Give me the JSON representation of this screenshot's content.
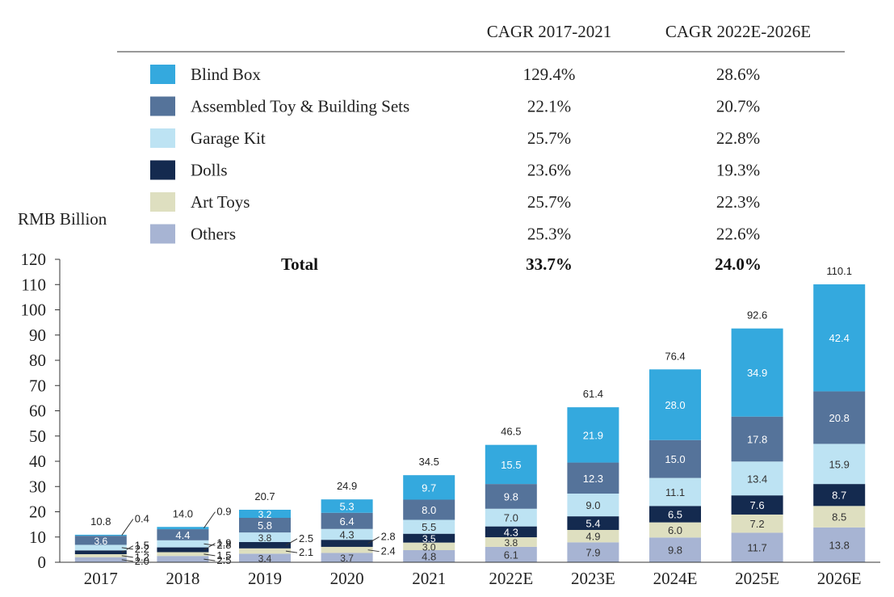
{
  "chart_data": {
    "type": "bar",
    "stacked": true,
    "unit_label": "RMB Billion",
    "ylim": [
      0,
      120
    ],
    "yticks": [
      0,
      10,
      20,
      30,
      40,
      50,
      60,
      70,
      80,
      90,
      100,
      110,
      120
    ],
    "categories": [
      "2017",
      "2018",
      "2019",
      "2020",
      "2021",
      "2022E",
      "2023E",
      "2024E",
      "2025E",
      "2026E"
    ],
    "totals": [
      "10.8",
      "14.0",
      "20.7",
      "24.9",
      "34.5",
      "46.5",
      "61.4",
      "76.4",
      "92.6",
      "110.1"
    ],
    "series": [
      {
        "name": "Others",
        "color": "#a7b4d3",
        "label_color": "#333333",
        "values": [
          2.0,
          2.5,
          3.4,
          3.7,
          4.8,
          6.1,
          7.9,
          9.8,
          11.7,
          13.8
        ],
        "labels": [
          "2.0",
          "2.5",
          "3.4",
          "3.7",
          "4.8",
          "6.1",
          "7.9",
          "9.8",
          "11.7",
          "13.8"
        ],
        "cagr_2017_2021": "25.3%",
        "cagr_2022e_2026e": "22.6%"
      },
      {
        "name": "Art Toys",
        "color": "#dedfc0",
        "label_color": "#333333",
        "values": [
          1.2,
          1.5,
          2.1,
          2.4,
          3.0,
          3.8,
          4.9,
          6.0,
          7.2,
          8.5
        ],
        "labels": [
          "1.2",
          "1.5",
          "2.1",
          "2.4",
          "3.0",
          "3.8",
          "4.9",
          "6.0",
          "7.2",
          "8.5"
        ],
        "cagr_2017_2021": "25.7%",
        "cagr_2022e_2026e": "22.3%"
      },
      {
        "name": "Dolls",
        "color": "#142a4f",
        "label_color": "#ffffff",
        "values": [
          1.5,
          1.9,
          2.5,
          2.8,
          3.5,
          4.3,
          5.4,
          6.5,
          7.6,
          8.7
        ],
        "labels": [
          "1.5",
          "1.9",
          "2.5",
          "2.8",
          "3.5",
          "4.3",
          "5.4",
          "6.5",
          "7.6",
          "8.7"
        ],
        "cagr_2017_2021": "23.6%",
        "cagr_2022e_2026e": "19.3%"
      },
      {
        "name": "Garage Kit",
        "color": "#bde3f3",
        "label_color": "#333333",
        "values": [
          2.2,
          2.8,
          3.8,
          4.3,
          5.5,
          7.0,
          9.0,
          11.1,
          13.4,
          15.9
        ],
        "labels": [
          "2.2",
          "2.8",
          "3.8",
          "4.3",
          "5.5",
          "7.0",
          "9.0",
          "11.1",
          "13.4",
          "15.9"
        ],
        "cagr_2017_2021": "25.7%",
        "cagr_2022e_2026e": "22.8%"
      },
      {
        "name": "Assembled Toy & Building Sets",
        "color": "#55739a",
        "label_color": "#ffffff",
        "values": [
          3.6,
          4.4,
          5.8,
          6.4,
          8.0,
          9.8,
          12.3,
          15.0,
          17.8,
          20.8
        ],
        "labels": [
          "3.6",
          "4.4",
          "5.8",
          "6.4",
          "8.0",
          "9.8",
          "12.3",
          "15.0",
          "17.8",
          "20.8"
        ],
        "cagr_2017_2021": "22.1%",
        "cagr_2022e_2026e": "20.7%"
      },
      {
        "name": "Blind Box",
        "color": "#34a9de",
        "label_color": "#ffffff",
        "values": [
          0.4,
          0.9,
          3.2,
          5.3,
          9.7,
          15.5,
          21.9,
          28.0,
          34.9,
          42.4
        ],
        "labels": [
          "0.4",
          "0.9",
          "3.2",
          "5.3",
          "9.7",
          "15.5",
          "21.9",
          "28.0",
          "34.9",
          "42.4"
        ],
        "cagr_2017_2021": "129.4%",
        "cagr_2022e_2026e": "28.6%"
      }
    ],
    "legend_order": [
      "Blind Box",
      "Assembled Toy & Building Sets",
      "Garage Kit",
      "Dolls",
      "Art Toys",
      "Others"
    ],
    "legend_placement": "top",
    "cagr_table": {
      "col1_header": "CAGR 2017-2021",
      "col2_header": "CAGR 2022E-2026E",
      "total_label": "Total",
      "total_col1": "33.7%",
      "total_col2": "24.0%"
    }
  }
}
